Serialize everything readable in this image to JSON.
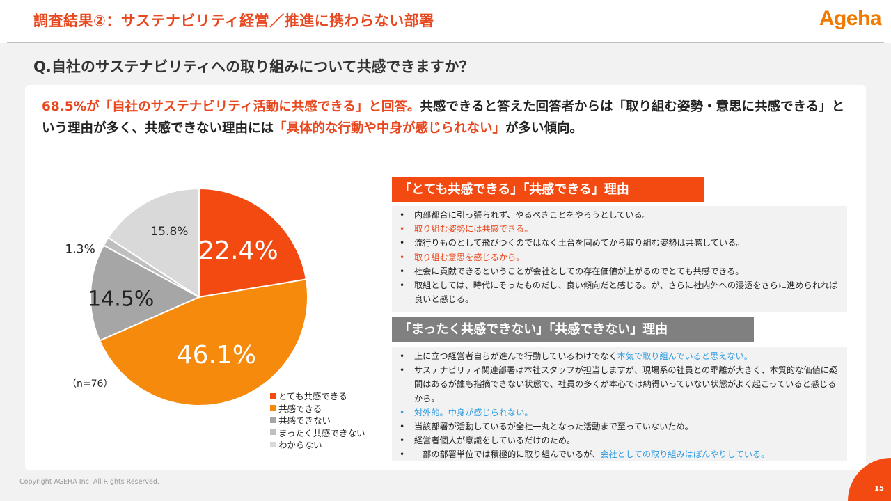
{
  "header": {
    "title": "調査結果②：サステナビリティ経営／推進に携わらない部署",
    "logo": "Ageha"
  },
  "question": "Q.自社のサステナビリティへの取り組みについて共感できますか？",
  "summary": {
    "part1": "68.5%が「自社のサステナビリティ活動に共感できる」と回答。",
    "part2": "共感できると答えた回答者からは「取り組む姿勢・意思に共感できる」という理由が多く、共感できない理由には",
    "part3": "「具体的な行動や中身が感じられない」",
    "part4": "が多い傾向。"
  },
  "chart_data": {
    "type": "pie",
    "start_angle_deg": 0,
    "direction": "clockwise",
    "sample_note": "（n=76）",
    "slices": [
      {
        "label": "とても共感できる",
        "value": 22.4,
        "display": "22.4%",
        "color": "#f24a10"
      },
      {
        "label": "共感できる",
        "value": 46.1,
        "display": "46.1%",
        "color": "#f58a0c"
      },
      {
        "label": "共感できない",
        "value": 14.5,
        "display": "14.5%",
        "color": "#a6a6a6"
      },
      {
        "label": "まったく共感できない",
        "value": 1.3,
        "display": "1.3%",
        "color": "#bfbfbf"
      },
      {
        "label": "わからない",
        "value": 15.8,
        "display": "15.8%",
        "color": "#d9d9d9"
      }
    ]
  },
  "reasons_positive": {
    "heading": "「とても共感できる」「共感できる」理由",
    "items": [
      {
        "text": "内部都合に引っ張られず、やるべきことをやろうとしている。",
        "style": "normal"
      },
      {
        "text": "取り組む姿勢には共感できる。",
        "style": "orange"
      },
      {
        "text": "流行りものとして飛びつくのではなく土台を固めてから取り組む姿勢は共感している。",
        "style": "normal"
      },
      {
        "text": "取り組む意思を感じるから。",
        "style": "orange"
      },
      {
        "text": "社会に貢献できるということが会社としての存在価値が上がるのでとても共感できる。",
        "style": "normal"
      },
      {
        "text": "取組としては、時代にそったものだし、良い傾向だと感じる。が、さらに社内外への浸透をさらに進められれば良いと感じる。",
        "style": "normal"
      }
    ]
  },
  "reasons_negative": {
    "heading": "「まったく共感できない」「共感できない」理由",
    "items": [
      {
        "text": "上に立つ経営者自らが進んで行動しているわけでなく",
        "highlight": "本気で取り組んでいると思えない。",
        "style": "normal"
      },
      {
        "text": "サステナビリティ関連部署は本社スタッフが担当しますが、現場系の社員との乖離が大きく、本質的な価値に疑問はあるが誰も指摘できない状態で、社員の多くが本心では納得いっていない状態がよく起こっていると感じるから。",
        "style": "normal"
      },
      {
        "text": "対外的。中身が感じられない。",
        "style": "blue"
      },
      {
        "text": "当該部署が活動しているが全社一丸となった活動まで至っていないため。",
        "style": "normal"
      },
      {
        "text": "経営者個人が意識をしているだけのため。",
        "style": "normal"
      },
      {
        "text": "一部の部署単位では積極的に取り組んでいるが、",
        "highlight": "会社としての取り組みはぼんやりしている。",
        "style": "normal"
      }
    ]
  },
  "footer": {
    "copyright": "Copyright AGEHA Inc. All Rights Reserved.",
    "page_number": "15"
  }
}
